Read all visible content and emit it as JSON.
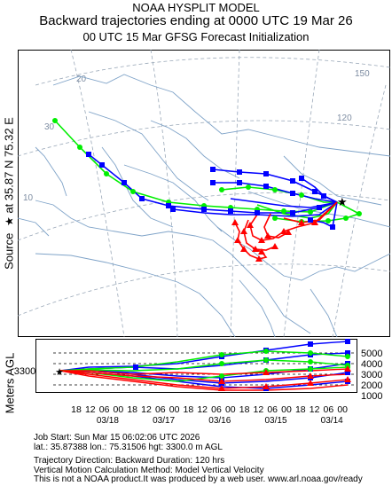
{
  "header": {
    "line1": "NOAA HYSPLIT MODEL",
    "line2": "Backward trajectories ending at 0000 UTC 19 Mar 26",
    "line3": "00 UTC 15 Mar    GFSG  Forecast Initialization"
  },
  "source": {
    "label": "Source",
    "star": "★",
    "at": "at",
    "lat": "35.87 N",
    "lon": "75.32 E"
  },
  "map": {
    "grid_labels": [
      "20",
      "30",
      "10",
      "120",
      "150"
    ],
    "colors": {
      "red": "#ff0000",
      "blue": "#0000ff",
      "green": "#00ee00",
      "land": "#7fa3c8",
      "grid": "#9aa8b8"
    }
  },
  "profile": {
    "ylabel": "Meters AGL",
    "start_height": "3300",
    "y_ticks": [
      "5000",
      "4000",
      "3000",
      "2000",
      "1000"
    ],
    "hour_ticks": [
      "18",
      "12",
      "06",
      "00",
      "18",
      "12",
      "06",
      "00",
      "18",
      "12",
      "06",
      "00",
      "18",
      "12",
      "06",
      "00",
      "18",
      "12",
      "06",
      "00"
    ],
    "date_ticks": [
      "03/18",
      "03/17",
      "03/16",
      "03/15",
      "03/14"
    ]
  },
  "info": {
    "job_start": "Job Start: Sun Mar 15 06:02:06 UTC 2026",
    "coords": "lat.: 35.87388   lon.: 75.31506    hgt: 3300.0 m AGL",
    "direction": "Trajectory Direction: Backward       Duration: 120 hrs",
    "vertical": "Vertical Motion Calculation Method: Model Vertical Velocity",
    "disclaimer": "This is not a NOAA product.It was produced by a web user. www.arl.noaa.gov/ready"
  }
}
